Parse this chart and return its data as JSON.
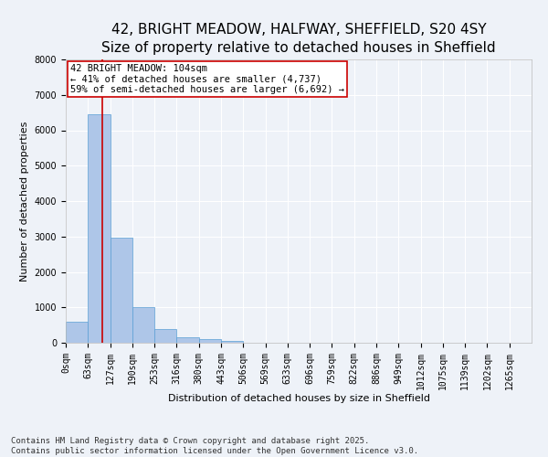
{
  "title_line1": "42, BRIGHT MEADOW, HALFWAY, SHEFFIELD, S20 4SY",
  "title_line2": "Size of property relative to detached houses in Sheffield",
  "xlabel": "Distribution of detached houses by size in Sheffield",
  "ylabel": "Number of detached properties",
  "bar_color": "#aec6e8",
  "bar_edge_color": "#5a9fd4",
  "background_color": "#eef2f8",
  "grid_color": "#ffffff",
  "bin_labels": [
    "0sqm",
    "63sqm",
    "127sqm",
    "190sqm",
    "253sqm",
    "316sqm",
    "380sqm",
    "443sqm",
    "506sqm",
    "569sqm",
    "633sqm",
    "696sqm",
    "759sqm",
    "822sqm",
    "886sqm",
    "949sqm",
    "1012sqm",
    "1075sqm",
    "1139sqm",
    "1202sqm",
    "1265sqm"
  ],
  "bar_values": [
    600,
    6450,
    2980,
    1010,
    380,
    160,
    100,
    60,
    0,
    0,
    0,
    0,
    0,
    0,
    0,
    0,
    0,
    0,
    0,
    0
  ],
  "ylim": [
    0,
    8000
  ],
  "yticks": [
    0,
    1000,
    2000,
    3000,
    4000,
    5000,
    6000,
    7000,
    8000
  ],
  "property_size": 104,
  "vline_color": "#cc0000",
  "annotation_text_line1": "42 BRIGHT MEADOW: 104sqm",
  "annotation_text_line2": "← 41% of detached houses are smaller (4,737)",
  "annotation_text_line3": "59% of semi-detached houses are larger (6,692) →",
  "annotation_box_color": "#ffffff",
  "annotation_box_edge": "#cc0000",
  "footer_line1": "Contains HM Land Registry data © Crown copyright and database right 2025.",
  "footer_line2": "Contains public sector information licensed under the Open Government Licence v3.0.",
  "title_fontsize": 11,
  "axis_label_fontsize": 8,
  "tick_fontsize": 7,
  "annotation_fontsize": 7.5,
  "footer_fontsize": 6.5
}
